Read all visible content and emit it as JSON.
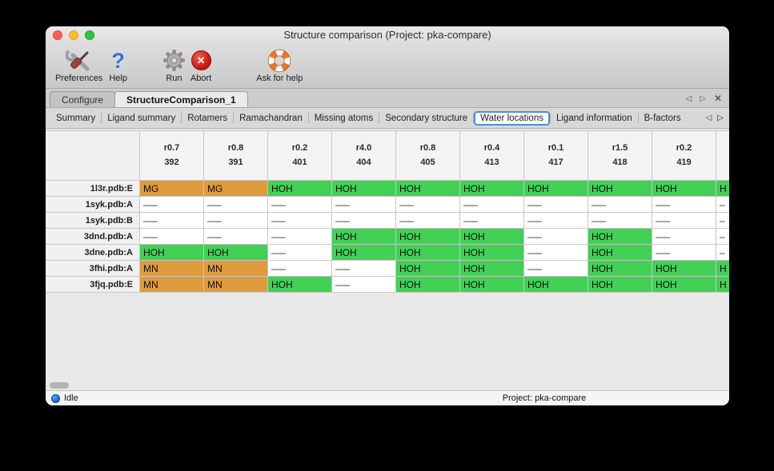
{
  "window": {
    "title": "Structure comparison (Project: pka-compare)"
  },
  "toolbar": {
    "items": [
      {
        "label": "Preferences",
        "icon": "tools-icon"
      },
      {
        "label": "Help",
        "icon": "question-mark-icon",
        "glyph": "?"
      },
      {
        "label": "Run",
        "icon": "gear-icon"
      },
      {
        "label": "Abort",
        "icon": "abort-cross-icon",
        "glyph": "✕"
      },
      {
        "label": "Ask for help",
        "icon": "lifebuoy-icon"
      }
    ]
  },
  "document_tabs": {
    "items": [
      {
        "label": "Configure",
        "active": false
      },
      {
        "label": "StructureComparison_1",
        "active": true
      }
    ],
    "nav": {
      "prev": "◁",
      "next": "▷",
      "close": "✕"
    }
  },
  "report_tabs": {
    "items": [
      {
        "label": "Summary",
        "selected": false
      },
      {
        "label": "Ligand summary",
        "selected": false
      },
      {
        "label": "Rotamers",
        "selected": false
      },
      {
        "label": "Ramachandran",
        "selected": false
      },
      {
        "label": "Missing atoms",
        "selected": false
      },
      {
        "label": "Secondary structure",
        "selected": false
      },
      {
        "label": "Water locations",
        "selected": true
      },
      {
        "label": "Ligand information",
        "selected": false
      },
      {
        "label": "B-factors",
        "selected": false
      }
    ],
    "nav": {
      "prev": "◁",
      "next": "▷"
    }
  },
  "table": {
    "columns": [
      {
        "line1": "r0.7",
        "line2": "392"
      },
      {
        "line1": "r0.8",
        "line2": "391"
      },
      {
        "line1": "r0.2",
        "line2": "401"
      },
      {
        "line1": "r4.0",
        "line2": "404"
      },
      {
        "line1": "r0.8",
        "line2": "405"
      },
      {
        "line1": "r0.4",
        "line2": "413"
      },
      {
        "line1": "r0.1",
        "line2": "417"
      },
      {
        "line1": "r1.5",
        "line2": "418"
      },
      {
        "line1": "r0.2",
        "line2": "419"
      },
      {
        "line1": "",
        "line2": "",
        "partial": true
      }
    ],
    "rows": [
      {
        "name": "1l3r.pdb:E",
        "cells": [
          {
            "text": "MG",
            "type": "metal"
          },
          {
            "text": "MG",
            "type": "metal"
          },
          {
            "text": "HOH",
            "type": "water"
          },
          {
            "text": "HOH",
            "type": "water"
          },
          {
            "text": "HOH",
            "type": "water"
          },
          {
            "text": "HOH",
            "type": "water"
          },
          {
            "text": "HOH",
            "type": "water"
          },
          {
            "text": "HOH",
            "type": "water"
          },
          {
            "text": "HOH",
            "type": "water"
          },
          {
            "text": "H",
            "type": "water"
          }
        ]
      },
      {
        "name": "1syk.pdb:A",
        "cells": [
          {
            "text": "–––",
            "type": "none"
          },
          {
            "text": "–––",
            "type": "none"
          },
          {
            "text": "–––",
            "type": "none"
          },
          {
            "text": "–––",
            "type": "none"
          },
          {
            "text": "–––",
            "type": "none"
          },
          {
            "text": "–––",
            "type": "none"
          },
          {
            "text": "–––",
            "type": "none"
          },
          {
            "text": "–––",
            "type": "none"
          },
          {
            "text": "–––",
            "type": "none"
          },
          {
            "text": "–",
            "type": "none"
          }
        ]
      },
      {
        "name": "1syk.pdb:B",
        "cells": [
          {
            "text": "–––",
            "type": "none"
          },
          {
            "text": "–––",
            "type": "none"
          },
          {
            "text": "–––",
            "type": "none"
          },
          {
            "text": "–––",
            "type": "none"
          },
          {
            "text": "–––",
            "type": "none"
          },
          {
            "text": "–––",
            "type": "none"
          },
          {
            "text": "–––",
            "type": "none"
          },
          {
            "text": "–––",
            "type": "none"
          },
          {
            "text": "–––",
            "type": "none"
          },
          {
            "text": "–",
            "type": "none"
          }
        ]
      },
      {
        "name": "3dnd.pdb:A",
        "cells": [
          {
            "text": "–––",
            "type": "none"
          },
          {
            "text": "–––",
            "type": "none"
          },
          {
            "text": "–––",
            "type": "none"
          },
          {
            "text": "HOH",
            "type": "water"
          },
          {
            "text": "HOH",
            "type": "water"
          },
          {
            "text": "HOH",
            "type": "water"
          },
          {
            "text": "–––",
            "type": "none"
          },
          {
            "text": "HOH",
            "type": "water"
          },
          {
            "text": "–––",
            "type": "none"
          },
          {
            "text": "–",
            "type": "none"
          }
        ]
      },
      {
        "name": "3dne.pdb:A",
        "cells": [
          {
            "text": "HOH",
            "type": "water"
          },
          {
            "text": "HOH",
            "type": "water"
          },
          {
            "text": "–––",
            "type": "none"
          },
          {
            "text": "HOH",
            "type": "water"
          },
          {
            "text": "HOH",
            "type": "water"
          },
          {
            "text": "HOH",
            "type": "water"
          },
          {
            "text": "–––",
            "type": "none"
          },
          {
            "text": "HOH",
            "type": "water"
          },
          {
            "text": "–––",
            "type": "none"
          },
          {
            "text": "–",
            "type": "none"
          }
        ]
      },
      {
        "name": "3fhi.pdb:A",
        "cells": [
          {
            "text": "MN",
            "type": "metal"
          },
          {
            "text": "MN",
            "type": "metal"
          },
          {
            "text": "–––",
            "type": "none"
          },
          {
            "text": "–––",
            "type": "none"
          },
          {
            "text": "HOH",
            "type": "water"
          },
          {
            "text": "HOH",
            "type": "water"
          },
          {
            "text": "–––",
            "type": "none"
          },
          {
            "text": "HOH",
            "type": "water"
          },
          {
            "text": "HOH",
            "type": "water"
          },
          {
            "text": "H",
            "type": "water"
          }
        ]
      },
      {
        "name": "3fjq.pdb:E",
        "cells": [
          {
            "text": "MN",
            "type": "metal"
          },
          {
            "text": "MN",
            "type": "metal"
          },
          {
            "text": "HOH",
            "type": "water"
          },
          {
            "text": "–––",
            "type": "none"
          },
          {
            "text": "HOH",
            "type": "water"
          },
          {
            "text": "HOH",
            "type": "water"
          },
          {
            "text": "HOH",
            "type": "water"
          },
          {
            "text": "HOH",
            "type": "water"
          },
          {
            "text": "HOH",
            "type": "water"
          },
          {
            "text": "H",
            "type": "water"
          }
        ]
      }
    ]
  },
  "statusbar": {
    "status": "Idle",
    "project": "Project: pka-compare"
  },
  "colors": {
    "water": "#41d054",
    "metal": "#de9b3e",
    "none": "#ffffff"
  }
}
